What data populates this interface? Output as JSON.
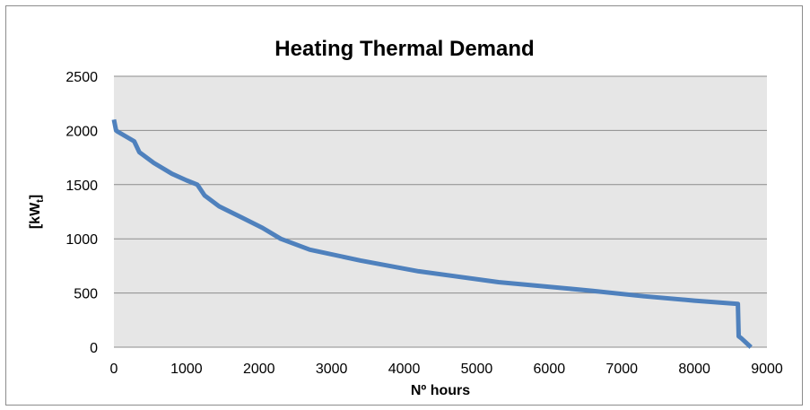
{
  "chart_data": {
    "type": "line",
    "title": "Heating Thermal Demand",
    "xlabel": "Nº hours",
    "ylabel_main": "[kW",
    "ylabel_sub": "t",
    "ylabel_close": "]",
    "xlim": [
      0,
      9000
    ],
    "ylim": [
      0,
      2500
    ],
    "xticks": [
      0,
      1000,
      2000,
      3000,
      4000,
      5000,
      6000,
      7000,
      8000,
      9000
    ],
    "yticks": [
      0,
      500,
      1000,
      1500,
      2000,
      2500
    ],
    "grid": true,
    "legend": "none",
    "series": [
      {
        "color": "#4f81bd",
        "x": [
          0,
          30,
          50,
          150,
          280,
          350,
          550,
          800,
          1000,
          1150,
          1250,
          1450,
          1750,
          2050,
          2300,
          2700,
          3400,
          4200,
          5300,
          6600,
          7300,
          8000,
          8600,
          8610,
          8650,
          8780
        ],
        "y": [
          2100,
          2000,
          1990,
          1950,
          1900,
          1800,
          1700,
          1600,
          1540,
          1500,
          1400,
          1300,
          1200,
          1100,
          1000,
          900,
          800,
          700,
          600,
          520,
          470,
          430,
          400,
          100,
          80,
          0
        ]
      }
    ]
  }
}
